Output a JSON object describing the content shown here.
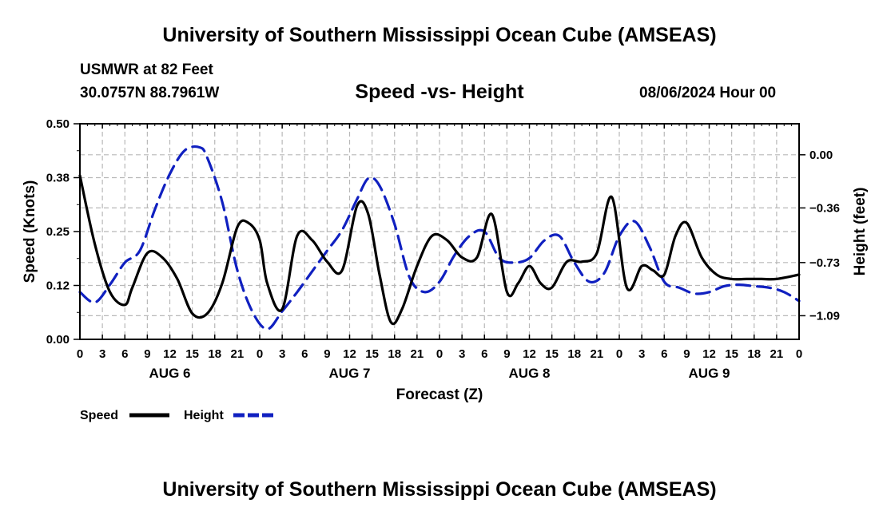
{
  "header": {
    "main_title": "University of Southern Mississippi Ocean Cube (AMSEAS)",
    "station_name": "USMWR at 82 Feet",
    "station_coords": "30.0757N  88.7961W",
    "issue_time": "08/06/2024 Hour 00"
  },
  "footer": {
    "title": "University of Southern Mississippi Ocean Cube (AMSEAS)"
  },
  "chart_data": {
    "type": "line",
    "title": "Speed -vs- Height",
    "xlabel": "Forecast (Z)",
    "ylabel": "Speed (Knots)",
    "ylabel_right": "Height (feet)",
    "x_unit": "hours from 08/06/2024 00Z",
    "xlim": [
      0,
      96
    ],
    "ylim": [
      0,
      0.5
    ],
    "ylim_right": [
      -1.25,
      0.21
    ],
    "x_tick_labels": [
      "0",
      "3",
      "6",
      "9",
      "12",
      "15",
      "18",
      "21",
      "0",
      "3",
      "6",
      "9",
      "12",
      "15",
      "18",
      "21",
      "0",
      "3",
      "6",
      "9",
      "12",
      "15",
      "18",
      "21",
      "0",
      "3",
      "6",
      "9",
      "12",
      "15",
      "18",
      "21",
      "0"
    ],
    "left_tick_values": [
      0,
      0.125,
      0.25,
      0.375,
      0.5
    ],
    "left_tick_labels": [
      "0.00",
      "0.12",
      "0.25",
      "0.38",
      "0.50"
    ],
    "right_tick_values": [
      0,
      -0.36,
      -0.73,
      -1.09
    ],
    "right_tick_labels": [
      "0.00",
      "−0.36",
      "−0.73",
      "−1.09"
    ],
    "day_labels": [
      {
        "x": 12,
        "text": "AUG 6"
      },
      {
        "x": 36,
        "text": "AUG 7"
      },
      {
        "x": 60,
        "text": "AUG 8"
      },
      {
        "x": 84,
        "text": "AUG 9"
      }
    ],
    "legend": [
      "Speed",
      "Height"
    ],
    "legend_position": "bottom-left",
    "grid": true,
    "series": [
      {
        "name": "Speed",
        "color": "#000000",
        "dash": "solid",
        "axis": "left",
        "x": [
          0,
          2,
          4,
          6,
          7,
          9,
          11,
          13,
          15,
          17,
          19,
          21,
          22.5,
          24,
          25,
          27,
          29,
          31,
          33,
          35,
          37,
          38.5,
          40,
          41.5,
          43,
          45,
          47,
          49,
          51,
          53,
          55,
          57,
          58.5,
          60,
          61.5,
          63,
          65,
          67,
          69,
          71,
          73,
          75,
          76.5,
          78,
          79.5,
          81,
          83,
          85,
          87,
          89,
          91,
          93,
          96
        ],
        "values": [
          0.38,
          0.22,
          0.11,
          0.08,
          0.12,
          0.2,
          0.19,
          0.14,
          0.06,
          0.06,
          0.13,
          0.26,
          0.27,
          0.23,
          0.13,
          0.07,
          0.24,
          0.23,
          0.18,
          0.16,
          0.31,
          0.29,
          0.15,
          0.04,
          0.07,
          0.17,
          0.24,
          0.23,
          0.19,
          0.19,
          0.29,
          0.11,
          0.13,
          0.17,
          0.13,
          0.12,
          0.18,
          0.18,
          0.2,
          0.33,
          0.12,
          0.17,
          0.16,
          0.15,
          0.24,
          0.27,
          0.19,
          0.15,
          0.14,
          0.14,
          0.14,
          0.14,
          0.15
        ]
      },
      {
        "name": "Height",
        "color": "#1020c0",
        "dash": "dashed",
        "axis": "right",
        "x": [
          0,
          2,
          4,
          6,
          8,
          10,
          12,
          14,
          16,
          17,
          19,
          21,
          23,
          25,
          27,
          29,
          31,
          33,
          35,
          37,
          38.5,
          40,
          42,
          44,
          46,
          48,
          50,
          52,
          54,
          56,
          58,
          60,
          62,
          64,
          66,
          68,
          70,
          72,
          74,
          76,
          78,
          80,
          82,
          84,
          86,
          88,
          90,
          92,
          94,
          96
        ],
        "values": [
          -0.93,
          -1.0,
          -0.88,
          -0.73,
          -0.65,
          -0.37,
          -0.13,
          0.03,
          0.05,
          -0.02,
          -0.32,
          -0.78,
          -1.06,
          -1.18,
          -1.06,
          -0.93,
          -0.79,
          -0.65,
          -0.51,
          -0.3,
          -0.16,
          -0.21,
          -0.47,
          -0.83,
          -0.93,
          -0.86,
          -0.68,
          -0.55,
          -0.52,
          -0.7,
          -0.73,
          -0.7,
          -0.58,
          -0.55,
          -0.73,
          -0.86,
          -0.8,
          -0.55,
          -0.45,
          -0.62,
          -0.86,
          -0.9,
          -0.94,
          -0.93,
          -0.89,
          -0.88,
          -0.89,
          -0.9,
          -0.93,
          -0.99
        ]
      }
    ]
  }
}
